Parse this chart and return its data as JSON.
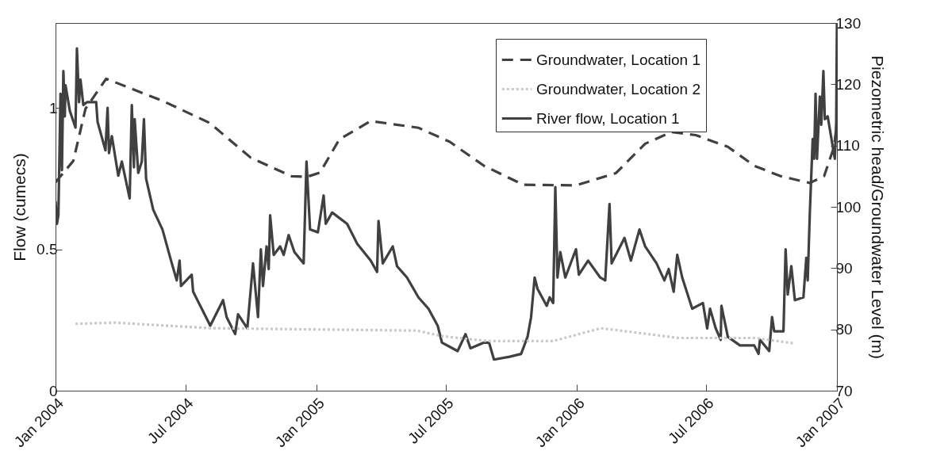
{
  "chart_data": {
    "type": "line",
    "xlabel": null,
    "ylabel": "Flow (cumecs)",
    "y2label": "Piezometric head/Groundwater Level (m)",
    "xlim": [
      "2004-01-01",
      "2007-01-01"
    ],
    "xticks": [
      {
        "value": "2004-01-01",
        "label": "Jan 2004"
      },
      {
        "value": "2004-07-01",
        "label": "Jul 2004"
      },
      {
        "value": "2005-01-01",
        "label": "Jan 2005"
      },
      {
        "value": "2005-07-01",
        "label": "Jul 2005"
      },
      {
        "value": "2006-01-01",
        "label": "Jan 2006"
      },
      {
        "value": "2006-07-01",
        "label": "Jul 2006"
      },
      {
        "value": "2007-01-01",
        "label": "Jan 2007"
      }
    ],
    "ylim": [
      0,
      1.3
    ],
    "yticks": [
      0,
      0.5,
      1
    ],
    "y2lim": [
      70,
      130
    ],
    "y2ticks": [
      70,
      80,
      90,
      100,
      110,
      120,
      130
    ],
    "legend": "top right",
    "grid": false,
    "series": [
      {
        "name": "Groundwater, Location 1",
        "color": "#404040",
        "line_style": "dashed",
        "axis": "y2",
        "x": [
          "2004-01-01",
          "2004-01-26",
          "2004-02-12",
          "2004-03-12",
          "2004-05-30",
          "2004-08-04",
          "2004-10-01",
          "2004-11-27",
          "2004-12-19",
          "2005-01-06",
          "2005-02-02",
          "2005-03-18",
          "2005-05-24",
          "2005-07-07",
          "2005-08-24",
          "2005-10-18",
          "2005-12-31",
          "2006-02-25",
          "2006-04-07",
          "2006-05-14",
          "2006-06-17",
          "2006-08-01",
          "2006-09-07",
          "2006-10-14",
          "2006-11-24",
          "2006-12-14",
          "2006-12-28",
          "2007-01-01"
        ],
        "values": [
          104,
          107.5,
          116,
          120.9,
          117.3,
          113.7,
          108,
          105,
          104.9,
          105.6,
          111,
          114,
          112.9,
          110.6,
          106.7,
          103.6,
          103.5,
          105.5,
          110.3,
          112.2,
          111.7,
          109.8,
          106.7,
          105,
          103.9,
          105,
          109.8,
          113.7
        ]
      },
      {
        "name": "Groundwater, Location 2",
        "color": "#c8c8c8",
        "line_style": "dotted",
        "axis": "y2",
        "x": [
          "2004-01-29",
          "2004-03-24",
          "2004-08-05",
          "2005-05-22",
          "2005-06-26",
          "2005-08-29",
          "2005-11-29",
          "2006-02-04",
          "2006-05-24",
          "2006-09-08",
          "2006-11-03"
        ],
        "values": [
          80.9,
          81.1,
          80.2,
          79.8,
          78.9,
          78.1,
          78.1,
          80.2,
          78.6,
          78.6,
          77.7
        ]
      },
      {
        "name": "River flow, Location 1",
        "color": "#404040",
        "line_style": "solid",
        "axis": "y",
        "x": [
          "2004-01-01",
          "2004-01-03",
          "2004-01-05",
          "2004-01-08",
          "2004-01-10",
          "2004-01-12",
          "2004-01-14",
          "2004-01-15",
          "2004-01-21",
          "2004-01-29",
          "2004-01-31",
          "2004-02-03",
          "2004-02-05",
          "2004-02-09",
          "2004-02-14",
          "2004-02-27",
          "2004-02-29",
          "2004-03-11",
          "2004-03-14",
          "2004-03-16",
          "2004-03-20",
          "2004-03-29",
          "2004-04-03",
          "2004-04-14",
          "2004-04-17",
          "2004-04-20",
          "2004-04-21",
          "2004-04-26",
          "2004-05-01",
          "2004-05-04",
          "2004-05-07",
          "2004-05-17",
          "2004-05-30",
          "2004-06-11",
          "2004-06-19",
          "2004-06-23",
          "2004-06-25",
          "2004-07-10",
          "2004-07-12",
          "2004-07-26",
          "2004-08-05",
          "2004-08-23",
          "2004-08-28",
          "2004-09-09",
          "2004-09-13",
          "2004-09-26",
          "2004-10-04",
          "2004-10-11",
          "2004-10-15",
          "2004-10-18",
          "2004-10-23",
          "2004-10-26",
          "2004-10-28",
          "2004-11-02",
          "2004-11-11",
          "2004-11-16",
          "2004-11-23",
          "2004-12-01",
          "2004-12-14",
          "2004-12-18",
          "2004-12-23",
          "2005-01-03",
          "2005-01-11",
          "2005-01-14",
          "2005-01-23",
          "2005-02-13",
          "2005-02-27",
          "2005-03-18",
          "2005-03-27",
          "2005-03-29",
          "2005-04-04",
          "2005-04-18",
          "2005-04-24",
          "2005-05-08",
          "2005-05-24",
          "2005-06-07",
          "2005-06-20",
          "2005-06-26",
          "2005-07-18",
          "2005-07-29",
          "2005-08-05",
          "2005-08-24",
          "2005-08-31",
          "2005-09-07",
          "2005-09-29",
          "2005-10-15",
          "2005-10-24",
          "2005-10-29",
          "2005-11-03",
          "2005-11-07",
          "2005-11-20",
          "2005-11-24",
          "2005-11-29",
          "2005-12-02",
          "2005-12-05",
          "2005-12-09",
          "2005-12-16",
          "2005-12-31",
          "2006-01-04",
          "2006-01-17",
          "2006-02-03",
          "2006-02-10",
          "2006-02-16",
          "2006-02-19",
          "2006-03-09",
          "2006-03-18",
          "2006-03-30",
          "2006-04-07",
          "2006-04-23",
          "2006-05-04",
          "2006-05-10",
          "2006-05-17",
          "2006-05-22",
          "2006-05-29",
          "2006-06-12",
          "2006-06-27",
          "2006-07-03",
          "2006-07-07",
          "2006-07-15",
          "2006-07-22",
          "2006-07-23",
          "2006-08-01",
          "2006-08-18",
          "2006-09-07",
          "2006-09-13",
          "2006-09-15",
          "2006-09-28",
          "2006-10-02",
          "2006-10-05",
          "2006-10-18",
          "2006-10-21",
          "2006-10-24",
          "2006-10-29",
          "2006-11-03",
          "2006-11-15",
          "2006-11-19",
          "2006-11-21",
          "2006-11-24",
          "2006-11-28",
          "2006-11-30",
          "2006-12-02",
          "2006-12-04",
          "2006-12-08",
          "2006-12-10",
          "2006-12-13",
          "2006-12-15",
          "2006-12-19",
          "2006-12-25",
          "2006-12-29",
          "2006-12-31",
          "2007-01-01"
        ],
        "values": [
          0.67,
          0.59,
          0.62,
          1.05,
          0.78,
          1.13,
          0.97,
          1.08,
          0.99,
          0.93,
          1.21,
          1.02,
          1.1,
          1.01,
          1.02,
          1.02,
          0.95,
          0.85,
          1.0,
          0.84,
          0.9,
          0.76,
          0.81,
          0.68,
          1.01,
          0.79,
          0.96,
          0.77,
          0.81,
          0.96,
          0.75,
          0.64,
          0.57,
          0.46,
          0.39,
          0.46,
          0.37,
          0.41,
          0.35,
          0.28,
          0.23,
          0.32,
          0.26,
          0.2,
          0.27,
          0.22,
          0.45,
          0.26,
          0.5,
          0.37,
          0.51,
          0.43,
          0.62,
          0.48,
          0.51,
          0.48,
          0.55,
          0.49,
          0.45,
          0.81,
          0.57,
          0.56,
          0.69,
          0.59,
          0.63,
          0.59,
          0.52,
          0.46,
          0.42,
          0.6,
          0.45,
          0.51,
          0.44,
          0.4,
          0.33,
          0.29,
          0.23,
          0.17,
          0.14,
          0.2,
          0.15,
          0.17,
          0.17,
          0.11,
          0.12,
          0.13,
          0.19,
          0.26,
          0.4,
          0.36,
          0.3,
          0.33,
          0.31,
          0.72,
          0.4,
          0.49,
          0.4,
          0.5,
          0.41,
          0.46,
          0.4,
          0.39,
          0.66,
          0.45,
          0.54,
          0.46,
          0.57,
          0.51,
          0.45,
          0.39,
          0.43,
          0.35,
          0.48,
          0.4,
          0.29,
          0.31,
          0.22,
          0.29,
          0.22,
          0.18,
          0.3,
          0.19,
          0.16,
          0.16,
          0.13,
          0.18,
          0.14,
          0.26,
          0.21,
          0.21,
          0.5,
          0.34,
          0.44,
          0.32,
          0.33,
          0.47,
          0.39,
          0.63,
          0.89,
          0.82,
          1.05,
          0.82,
          1.04,
          0.94,
          1.13,
          0.96,
          0.97,
          0.88,
          0.82,
          0.95,
          1.3
        ]
      }
    ]
  }
}
